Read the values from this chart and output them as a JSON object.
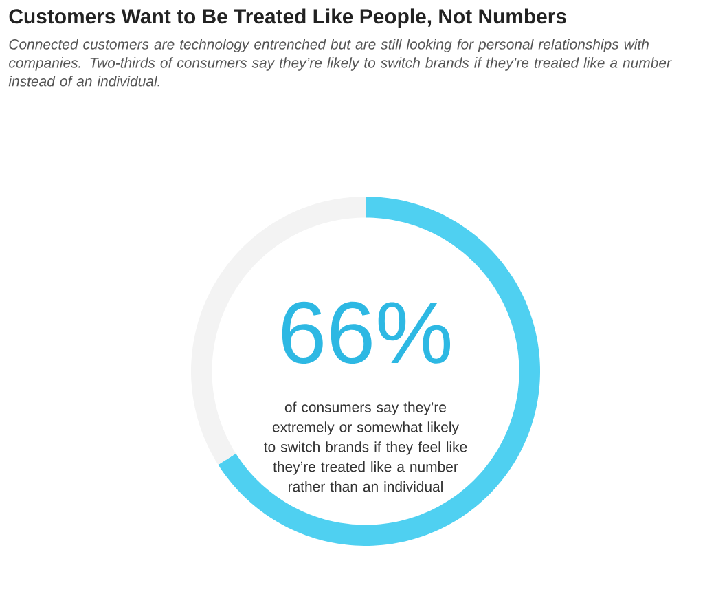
{
  "chart_data": {
    "type": "donut",
    "title": "Customers Want to Be Treated Like People, Not Numbers",
    "subtitle": "Connected customers are technology entrenched but are still looking for personal relationships with companies. Two-thirds of consumers say they’re likely to switch brands if they’re treated like a number instead of an individual.",
    "categories": [
      null,
      null
    ],
    "values": [
      66,
      34
    ],
    "colors": [
      "#4fd0f1",
      "#f3f3f3"
    ],
    "annotations": [
      "66%",
      "of consumers say they’re extremely or somewhat likely to switch brands if they feel like they’re treated like a number rather than an individual"
    ]
  }
}
